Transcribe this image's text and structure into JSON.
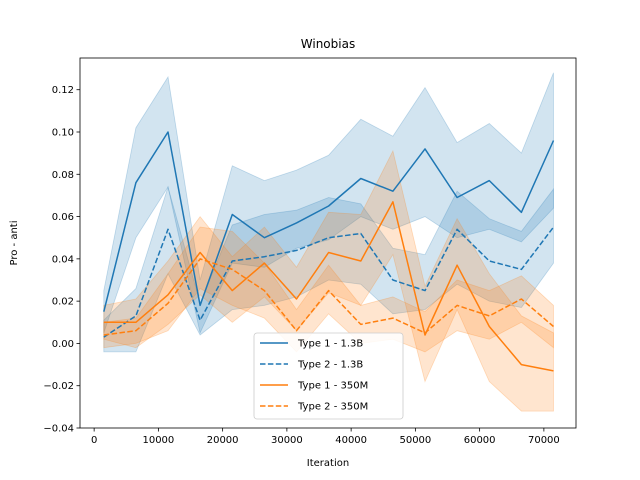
{
  "chart_data": {
    "type": "line",
    "title": "Winobias",
    "xlabel": "Iteration",
    "ylabel": "Pro - anti",
    "xlim": [
      -2200,
      75000
    ],
    "ylim": [
      -0.04,
      0.135
    ],
    "xticks": [
      0,
      10000,
      20000,
      30000,
      40000,
      50000,
      60000,
      70000
    ],
    "xtick_labels": [
      "0",
      "10000",
      "20000",
      "30000",
      "40000",
      "50000",
      "60000",
      "70000"
    ],
    "yticks": [
      -0.04,
      -0.02,
      0.0,
      0.02,
      0.04,
      0.06,
      0.08,
      0.1,
      0.12
    ],
    "ytick_labels": [
      "−0.04",
      "−0.02",
      "0.00",
      "0.02",
      "0.04",
      "0.06",
      "0.08",
      "0.10",
      "0.12"
    ],
    "grid": false,
    "legend_position": "lower-center",
    "x": [
      1500,
      6500,
      11500,
      16500,
      21500,
      26500,
      31500,
      36500,
      41500,
      46500,
      51500,
      56500,
      61500,
      66500,
      71500
    ],
    "series": [
      {
        "name": "Type 1 - 1.3B",
        "color": "#1f77b4",
        "linestyle": "solid",
        "values": [
          0.015,
          0.076,
          0.1,
          0.018,
          0.061,
          0.05,
          0.057,
          0.065,
          0.078,
          0.072,
          0.092,
          0.069,
          0.077,
          0.062,
          0.096
        ],
        "lower": [
          0.005,
          0.05,
          0.074,
          0.005,
          0.038,
          0.036,
          0.045,
          0.049,
          0.06,
          0.054,
          0.06,
          0.05,
          0.054,
          0.048,
          0.064
        ],
        "upper": [
          0.025,
          0.102,
          0.126,
          0.03,
          0.084,
          0.077,
          0.082,
          0.089,
          0.106,
          0.098,
          0.121,
          0.095,
          0.104,
          0.09,
          0.128
        ]
      },
      {
        "name": "Type 2 - 1.3B",
        "color": "#1f77b4",
        "linestyle": "dashed",
        "values": [
          0.003,
          0.013,
          0.054,
          0.011,
          0.039,
          0.041,
          0.044,
          0.05,
          0.052,
          0.03,
          0.025,
          0.054,
          0.039,
          0.035,
          0.055
        ],
        "lower": [
          -0.004,
          -0.004,
          0.033,
          0.004,
          0.016,
          0.018,
          0.022,
          0.03,
          0.028,
          0.014,
          0.016,
          0.028,
          0.02,
          0.017,
          0.038
        ],
        "upper": [
          0.011,
          0.026,
          0.074,
          0.019,
          0.056,
          0.061,
          0.063,
          0.069,
          0.066,
          0.045,
          0.042,
          0.072,
          0.059,
          0.053,
          0.073
        ]
      },
      {
        "name": "Type 1 - 350M",
        "color": "#ff7f0e",
        "linestyle": "solid",
        "values": [
          0.01,
          0.01,
          0.023,
          0.043,
          0.025,
          0.038,
          0.021,
          0.043,
          0.039,
          0.067,
          0.004,
          0.037,
          0.008,
          -0.01,
          -0.013
        ],
        "lower": [
          0.002,
          -0.002,
          0.009,
          0.023,
          0.01,
          0.022,
          0.006,
          0.024,
          0.018,
          0.042,
          -0.018,
          0.016,
          -0.018,
          -0.032,
          -0.032
        ],
        "upper": [
          0.018,
          0.021,
          0.039,
          0.06,
          0.041,
          0.055,
          0.036,
          0.062,
          0.061,
          0.091,
          0.027,
          0.059,
          0.033,
          0.013,
          0.005
        ]
      },
      {
        "name": "Type 2 - 350M",
        "color": "#ff7f0e",
        "linestyle": "dashed",
        "values": [
          0.004,
          0.006,
          0.019,
          0.04,
          0.035,
          0.025,
          0.006,
          0.025,
          0.009,
          0.012,
          0.005,
          0.018,
          0.013,
          0.021,
          0.008
        ],
        "lower": [
          -0.002,
          0.0,
          0.006,
          0.026,
          0.018,
          0.012,
          -0.004,
          0.014,
          0.0,
          0.002,
          -0.004,
          0.006,
          0.002,
          0.01,
          -0.002
        ],
        "upper": [
          0.01,
          0.012,
          0.033,
          0.055,
          0.053,
          0.038,
          0.016,
          0.037,
          0.018,
          0.022,
          0.015,
          0.03,
          0.025,
          0.032,
          0.018
        ]
      }
    ]
  }
}
